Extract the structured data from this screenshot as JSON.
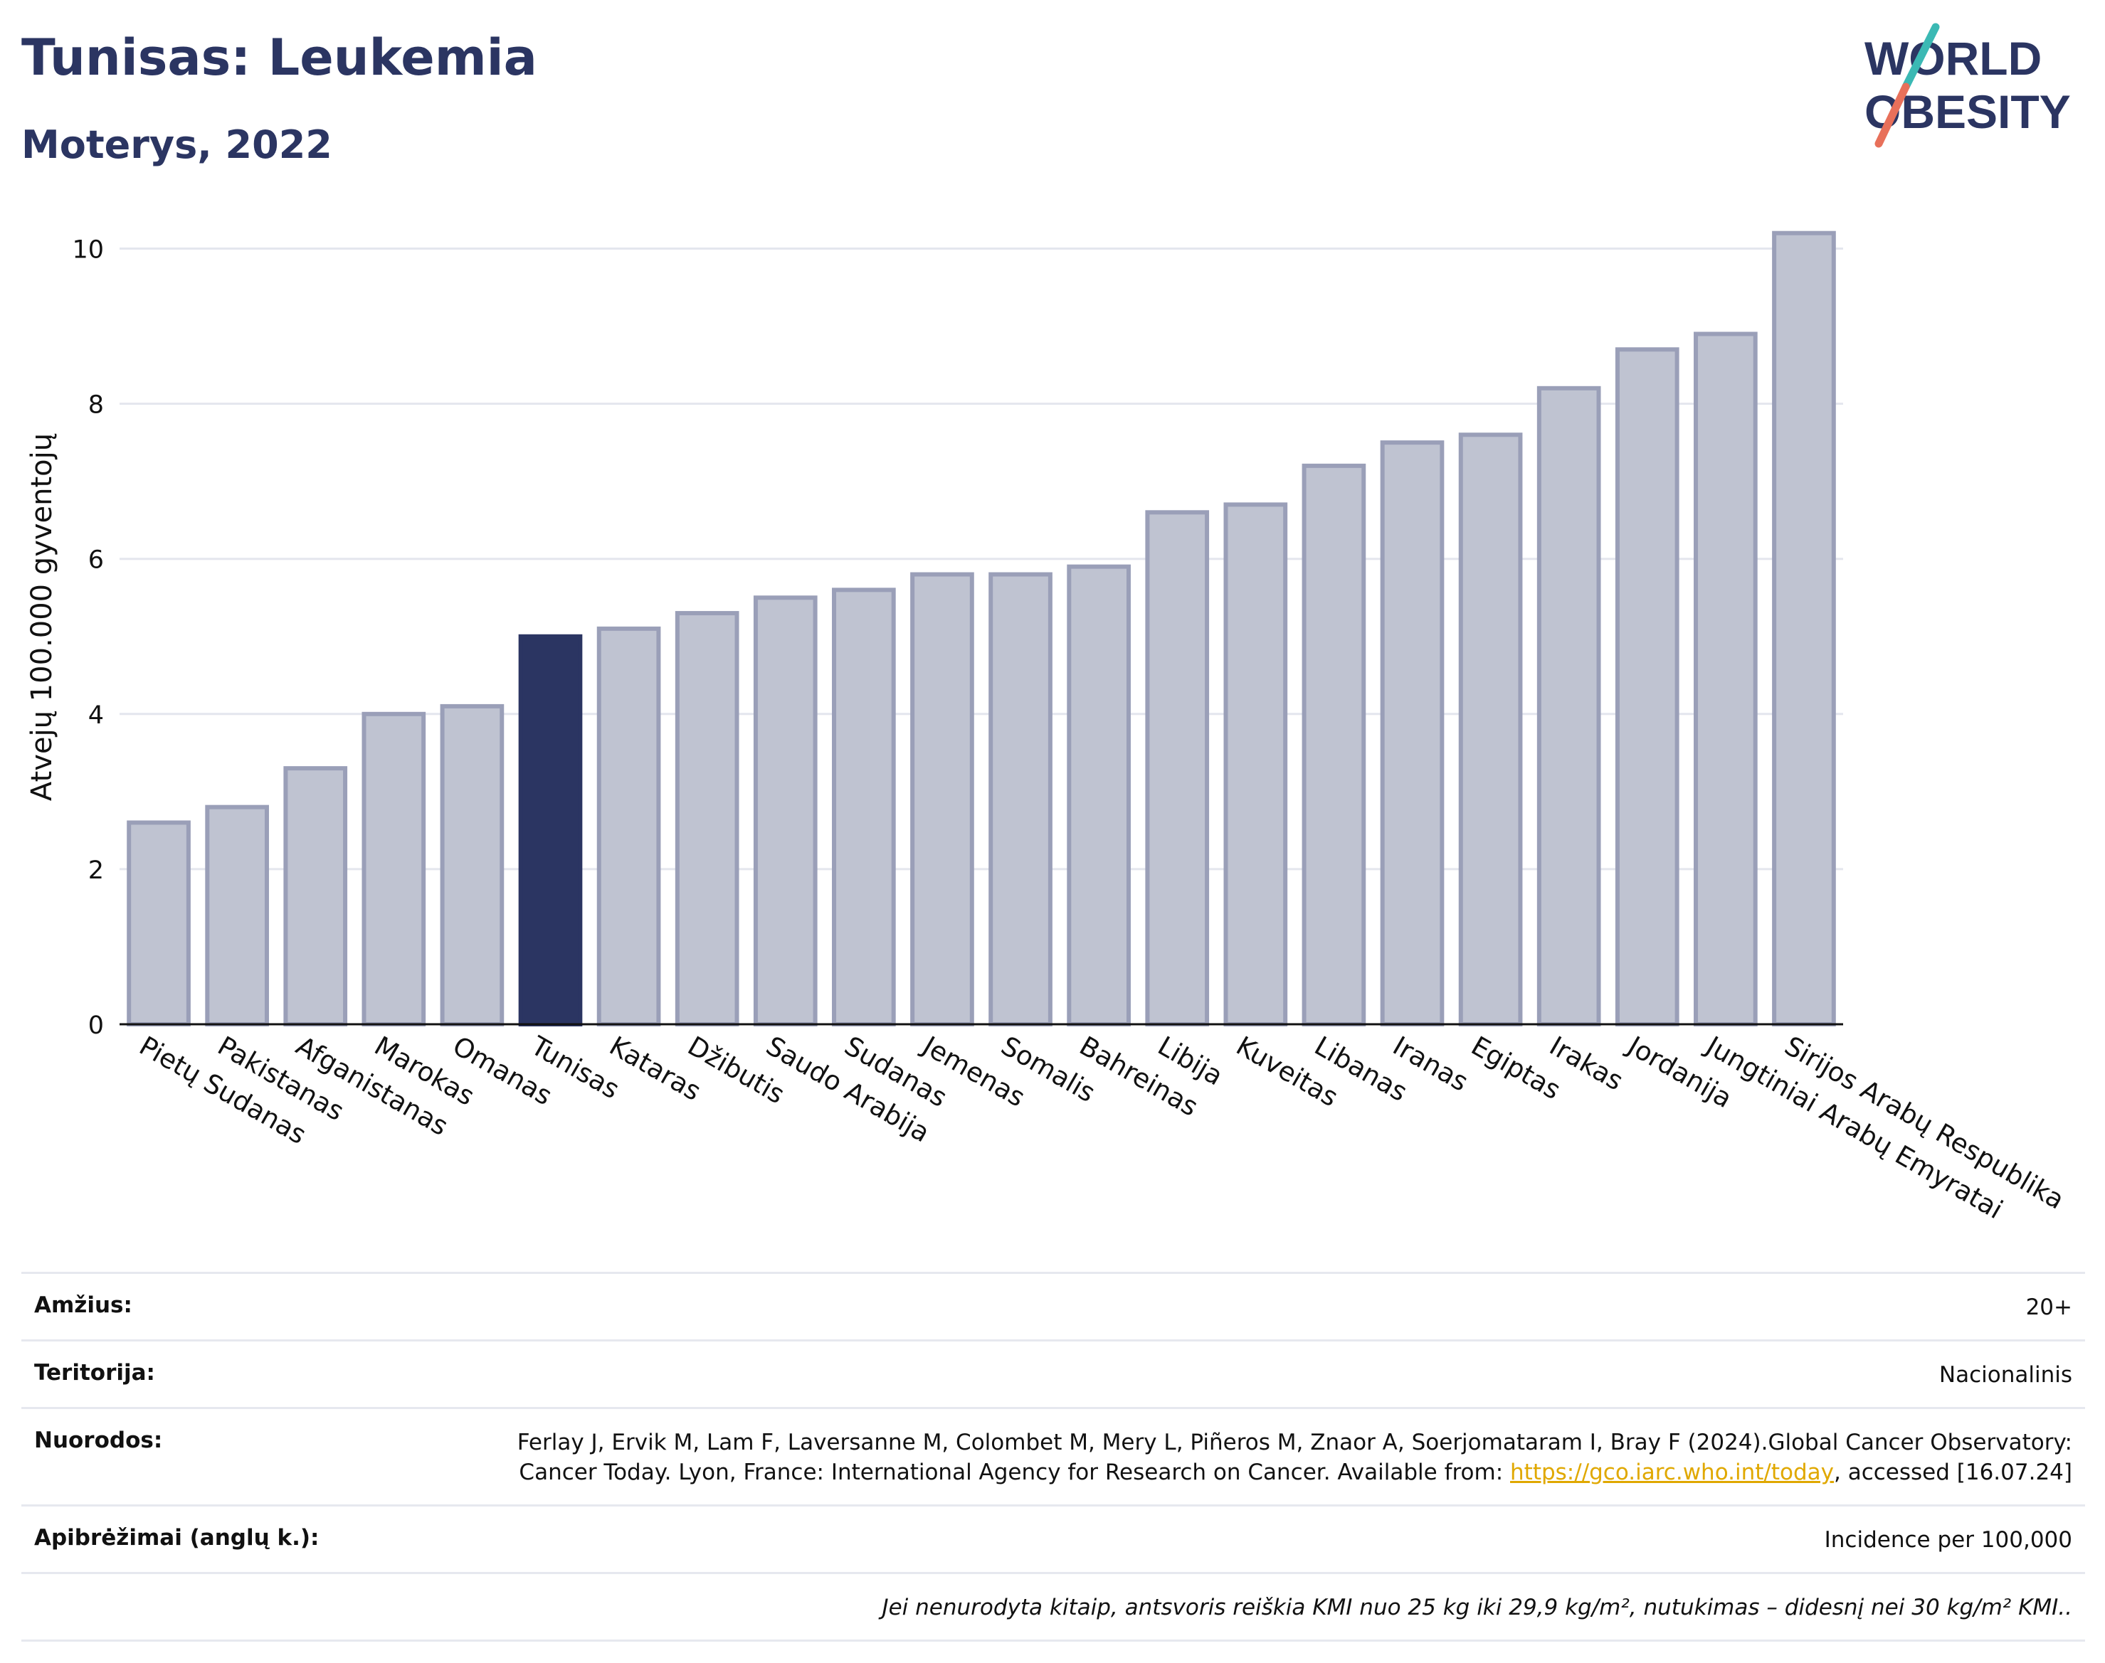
{
  "header": {
    "title": "Tunisas: Leukemia",
    "subtitle": "Moterys, 2022",
    "logo_line1": "WORLD",
    "logo_line2": "OBESITY"
  },
  "colors": {
    "brand": "#2b3562",
    "bar_default": "#bfc3d1",
    "bar_border": "#9a9fb8",
    "bar_highlight": "#2b3562",
    "logo_teal": "#3bb9b4",
    "logo_coral": "#e8705a",
    "link": "#e0a800"
  },
  "chart_data": {
    "type": "bar",
    "ylabel": "Atvejų 100.000 gyventojų",
    "xlabel": "",
    "ylim": [
      0,
      10.5
    ],
    "yticks": [
      0,
      2,
      4,
      6,
      8,
      10
    ],
    "grid": true,
    "highlight": "Tunisas",
    "categories": [
      "Pietų Sudanas",
      "Pakistanas",
      "Afganistanas",
      "Marokas",
      "Omanas",
      "Tunisas",
      "Kataras",
      "Džibutis",
      "Saudo Arabija",
      "Sudanas",
      "Jemenas",
      "Somalis",
      "Bahreinas",
      "Libija",
      "Kuveitas",
      "Libanas",
      "Iranas",
      "Egiptas",
      "Irakas",
      "Jordanija",
      "Jungtiniai Arabų Emyratai",
      "Sirijos Arabų Respublika"
    ],
    "values": [
      2.6,
      2.8,
      3.3,
      4.0,
      4.1,
      5.0,
      5.1,
      5.3,
      5.5,
      5.6,
      5.8,
      5.8,
      5.9,
      6.6,
      6.7,
      7.2,
      7.5,
      7.6,
      8.2,
      8.7,
      8.9,
      10.2
    ]
  },
  "meta": {
    "age_label": "Amžius:",
    "age_value": "20+",
    "territory_label": "Teritorija:",
    "territory_value": "Nacionalinis",
    "refs_label": "Nuorodos:",
    "refs_text_1": "Ferlay J, Ervik M, Lam F, Laversanne M, Colombet M, Mery L, Piñeros M, Znaor A, Soerjomataram I, Bray F (2024).Global Cancer Observatory: Cancer Today. Lyon, France: International Agency for Research on Cancer. Available from: ",
    "refs_link": "https://gco.iarc.who.int/today",
    "refs_text_2": ", accessed [16.07.24]",
    "defs_label": "Apibrėžimai (anglų k.):",
    "defs_value": "Incidence per 100,000",
    "note": "Jei nenurodyta kitaip, antsvoris reiškia KMI nuo 25 kg iki 29,9 kg/m², nutukimas – didesnį nei 30 kg/m² KMI.."
  }
}
